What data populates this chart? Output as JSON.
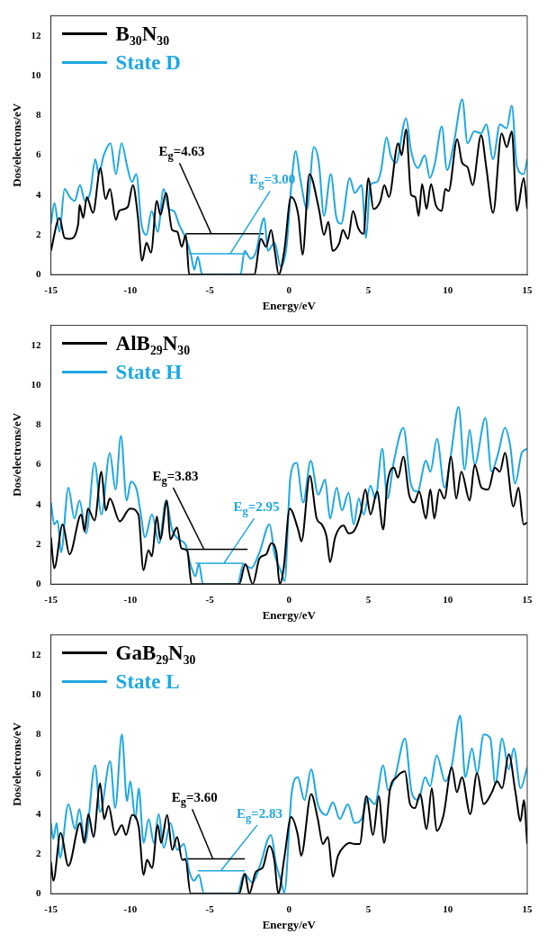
{
  "chart_data": [
    {
      "type": "line",
      "xlabel": "Energy/eV",
      "ylabel": "Dos/electrons/eV",
      "xlim": [
        -15,
        15
      ],
      "xticks": [
        -15,
        -10,
        -5,
        0,
        5,
        10,
        15
      ],
      "ylim": [
        0,
        13
      ],
      "yticks": [
        0,
        2,
        4,
        6,
        8,
        10,
        12
      ],
      "legend": "top left",
      "marker": "none",
      "series": [
        {
          "name": "B₃₀N₃₀",
          "color": "#000000",
          "x": [
            -15,
            -14.46,
            -14.14,
            -13.8,
            -13.28,
            -13.2,
            -12.96,
            -12.74,
            -12.35,
            -11.88,
            -11.56,
            -11.28,
            -10.91,
            -10.7,
            -10.16,
            -9.84,
            -9.52,
            -9.26,
            -8.98,
            -8.7,
            -8.33,
            -8.1,
            -7.75,
            -7.37,
            -7.04,
            -6.76,
            -6.5,
            -6.29,
            -2.2,
            -1.77,
            -1.45,
            -1.13,
            -0.9,
            -0.65,
            -0.3,
            0.12,
            0.59,
            0.85,
            1.28,
            1.88,
            2.2,
            2.48,
            2.74,
            3.17,
            3.39,
            3.71,
            4.03,
            4.35,
            4.68,
            5,
            5.32,
            5.75,
            6,
            6.29,
            6.87,
            7.09,
            7.37,
            7.69,
            7.95,
            8.16,
            8.38,
            8.66,
            8.94,
            9.24,
            9.62,
            9.84,
            10.05,
            10.59,
            10.91,
            11.24,
            11.56,
            12.1,
            12.42,
            12.85,
            13.39,
            13.71,
            14.03,
            14.35,
            14.78,
            15
          ],
          "values": [
            1.2,
            2.85,
            1.85,
            1.8,
            2.55,
            3.5,
            2.85,
            3.9,
            3.1,
            5.35,
            3.8,
            4.3,
            2.75,
            3.2,
            3.4,
            4.5,
            2.9,
            0.7,
            1.6,
            1.1,
            3.7,
            3,
            4.1,
            2.25,
            2.15,
            1.4,
            2,
            0,
            0,
            1.8,
            1.4,
            2.25,
            1.2,
            0,
            1.2,
            3.9,
            2.95,
            1,
            5.05,
            3.3,
            2,
            2.65,
            1.2,
            1.6,
            2.25,
            1.8,
            3.2,
            2.35,
            2.05,
            4.85,
            3.3,
            3.7,
            4.5,
            3.9,
            6.6,
            6,
            7.3,
            4,
            3.9,
            2.95,
            4.55,
            3.3,
            4.55,
            3.5,
            3.2,
            4.3,
            4.2,
            6.8,
            5.6,
            5.4,
            4.5,
            7,
            5.4,
            3.1,
            7.1,
            6.4,
            7.2,
            3.2,
            4.85,
            3.3
          ]
        },
        {
          "name": "State D",
          "color": "#1ea7e1",
          "x": [
            -15,
            -14.78,
            -14.46,
            -14.14,
            -13.82,
            -13.5,
            -13.17,
            -12.85,
            -12.53,
            -12.2,
            -11.99,
            -11.67,
            -11.24,
            -10.91,
            -10.55,
            -10.2,
            -9.9,
            -9.62,
            -9.3,
            -8.98,
            -8.66,
            -8.27,
            -7.9,
            -7.58,
            -7.26,
            -6.94,
            -6.5,
            -6.18,
            -5.97,
            -5.75,
            -5.47,
            -3.06,
            -2.8,
            -2.42,
            -2.1,
            -1.56,
            -1.34,
            -0.91,
            -0.53,
            -0.16,
            0.16,
            0.42,
            0.7,
            1.13,
            1.56,
            1.88,
            2.2,
            2.63,
            2.96,
            3.28,
            3.82,
            4.14,
            4.57,
            4.85,
            5.11,
            5.54,
            5.8,
            6.14,
            6.4,
            6.72,
            7.37,
            7.69,
            8.12,
            8.55,
            8.87,
            9.19,
            9.62,
            9.95,
            10.38,
            10.91,
            11.24,
            11.67,
            12.1,
            12.42,
            12.85,
            13.28,
            13.71,
            14.03,
            14.35,
            14.78,
            15
          ],
          "values": [
            2.55,
            3.6,
            2.15,
            4.3,
            3.9,
            3.7,
            4.5,
            3.7,
            4.1,
            5.8,
            5.05,
            6,
            6.6,
            5.05,
            6.6,
            5.45,
            4.65,
            5.05,
            2.55,
            2,
            3.2,
            2.15,
            4.3,
            3.3,
            3.2,
            2.55,
            1.8,
            1,
            0.25,
            0.9,
            0,
            0,
            1.2,
            0.8,
            1.1,
            2.85,
            1.2,
            1.6,
            0.4,
            1.4,
            4.65,
            6.2,
            4.85,
            3.3,
            6.4,
            5.6,
            2.95,
            5.05,
            2.95,
            2.55,
            4.85,
            4.1,
            4.5,
            1.85,
            4.5,
            4.65,
            5.25,
            6.9,
            6,
            5.6,
            7.85,
            6.2,
            5.35,
            6,
            4.85,
            5.6,
            7.45,
            5.25,
            6.6,
            8.8,
            6.6,
            7.2,
            7.1,
            7.55,
            5.8,
            7.55,
            7.35,
            8.5,
            5.45,
            5.05,
            5.8
          ]
        },
        {
          "color": "#000000",
          "x": [
            -6.5,
            -1.6
          ],
          "values": [
            2.05,
            2.05
          ]
        },
        {
          "color": "#000000",
          "x": [
            -4.9,
            -6.9
          ],
          "values": [
            2.05,
            5.6
          ]
        },
        {
          "color": "#1ea7e1",
          "x": [
            -6.3,
            -2.68
          ],
          "values": [
            1.05,
            1.05
          ]
        },
        {
          "color": "#1ea7e1",
          "x": [
            -3.7,
            -1.2
          ],
          "values": [
            1.05,
            4.2
          ]
        }
      ],
      "annotations": [
        {
          "text": "E$_{g}$=4.63",
          "x": -6.9,
          "y": 5.6
        },
        {
          "text": "E$_{g}$=3.00",
          "x": -1.2,
          "y": 4.2
        }
      ]
    },
    {
      "type": "line",
      "xlabel": "Energy/eV",
      "ylabel": "Dos/electrons/eV",
      "xlim": [
        -15,
        15
      ],
      "xticks": [
        -15,
        -10,
        -5,
        0,
        5,
        10,
        15
      ],
      "ylim": [
        0,
        13
      ],
      "yticks": [
        0,
        2,
        4,
        6,
        8,
        10,
        12
      ],
      "legend": "top left",
      "marker": "none",
      "series": [
        {
          "name": "AlB₂₉N₃₀",
          "color": "#000000",
          "x": [
            -15,
            -14.79,
            -14.26,
            -13.83,
            -13.09,
            -12.88,
            -12.67,
            -12.25,
            -11.82,
            -11.55,
            -11.29,
            -10.66,
            -10.02,
            -9.49,
            -9.17,
            -8.86,
            -8.64,
            -8.33,
            -8.11,
            -7.69,
            -7.48,
            -7.06,
            -6.78,
            -6.42,
            -6.14,
            -3.14,
            -2.75,
            -2.29,
            -1.86,
            -1.44,
            -1.12,
            -0.8,
            -0.59,
            -0.34,
            0.04,
            0.57,
            0.78,
            1.31,
            1.74,
            2.06,
            2.37,
            2.58,
            2.9,
            3.43,
            3.75,
            4.07,
            4.49,
            4.81,
            5.13,
            5.55,
            5.93,
            6.19,
            6.61,
            6.86,
            7.2,
            7.56,
            7.88,
            8.2,
            8.62,
            8.9,
            9.15,
            9.47,
            9.79,
            10.21,
            10.53,
            10.85,
            11.38,
            11.69,
            12.12,
            12.54,
            12.97,
            13.28,
            13.6,
            14.13,
            14.45,
            14.77,
            15
          ],
          "values": [
            2.35,
            0.8,
            3,
            1.5,
            3.5,
            2.65,
            3.8,
            3.2,
            5.65,
            3.7,
            4.3,
            3.15,
            3.8,
            3.5,
            0.7,
            1.7,
            1.4,
            3.4,
            2.25,
            4.2,
            2.25,
            2.85,
            1.8,
            1.7,
            0,
            0,
            1,
            0,
            1.3,
            1.5,
            2.05,
            1.6,
            0,
            0.8,
            3.8,
            2.75,
            2.15,
            5.45,
            3.3,
            3,
            2.35,
            1.1,
            2.35,
            2.95,
            2.55,
            2.65,
            3.5,
            4.75,
            3.5,
            4.65,
            2.75,
            5.05,
            5.85,
            5.35,
            6.4,
            4.5,
            4.1,
            4.65,
            3.3,
            4.75,
            3.3,
            4.75,
            4.3,
            6.4,
            4.3,
            5.65,
            4.2,
            6,
            4.85,
            4.75,
            5.85,
            5.65,
            6.6,
            3.9,
            4.85,
            3,
            3.1
          ]
        },
        {
          "name": "State H",
          "color": "#1ea7e1",
          "x": [
            -15,
            -14.79,
            -14.58,
            -14.36,
            -13.9,
            -13.52,
            -13.2,
            -12.78,
            -12.25,
            -11.82,
            -11.29,
            -10.93,
            -10.59,
            -10.23,
            -9.96,
            -9.6,
            -9.39,
            -9.07,
            -8.64,
            -8.18,
            -7.75,
            -7.37,
            -6.95,
            -6.53,
            -6.21,
            -5.89,
            -5.68,
            -5.42,
            -3.24,
            -2.88,
            -2.39,
            -1.86,
            -1.23,
            -0.91,
            -0.49,
            -0.28,
            0.08,
            0.47,
            0.89,
            1.36,
            1.84,
            2.27,
            2.58,
            3,
            3.33,
            3.75,
            4.07,
            4.39,
            4.7,
            5.13,
            5.44,
            5.87,
            6.19,
            6.61,
            7.2,
            7.67,
            8.09,
            8.62,
            8.9,
            9.32,
            9.79,
            10.21,
            10.68,
            11.06,
            11.38,
            11.69,
            12.37,
            12.75,
            13.18,
            13.6,
            13.92,
            14.24,
            14.66,
            15
          ],
          "values": [
            4.1,
            3,
            3.2,
            1.6,
            4.85,
            3.3,
            4.2,
            2.55,
            6.1,
            3.5,
            6.6,
            4.75,
            7.45,
            4.2,
            5.15,
            4.75,
            3.8,
            2.35,
            3.5,
            2.05,
            4.2,
            2.75,
            2.25,
            2,
            1,
            0.4,
            1.05,
            0,
            0,
            1,
            0.8,
            1.6,
            3,
            1.5,
            0.6,
            0.15,
            5.35,
            6.1,
            4.1,
            6.2,
            4.5,
            5.25,
            3.3,
            4.85,
            3.7,
            4.6,
            3,
            4.3,
            3.5,
            4.95,
            4.3,
            6.8,
            4.3,
            6.2,
            7.85,
            5.05,
            4.65,
            6.2,
            5.65,
            7.3,
            4.85,
            6.6,
            8.9,
            5.75,
            7.75,
            6,
            8.35,
            5.65,
            6.6,
            7.85,
            7,
            5.05,
            6.6,
            6.8
          ]
        },
        {
          "color": "#000000",
          "x": [
            -6.42,
            -2.61
          ],
          "values": [
            1.75,
            1.75
          ]
        },
        {
          "color": "#000000",
          "x": [
            -5.36,
            -7.3
          ],
          "values": [
            1.75,
            4.85
          ]
        },
        {
          "color": "#1ea7e1",
          "x": [
            -5.89,
            -2.88
          ],
          "values": [
            1.05,
            1.05
          ]
        },
        {
          "color": "#1ea7e1",
          "x": [
            -4.1,
            -2.2
          ],
          "values": [
            1.05,
            3.3
          ]
        }
      ],
      "annotations": [
        {
          "text": "E$_{g}$=3.83",
          "x": -7.3,
          "y": 4.85
        },
        {
          "text": "E$_{g}$=2.95",
          "x": -2.2,
          "y": 3.3
        }
      ]
    },
    {
      "type": "line",
      "xlabel": "Energy/eV",
      "ylabel": "Dos/electrons/eV",
      "xlim": [
        -15,
        15
      ],
      "xticks": [
        -15,
        -10,
        -5,
        0,
        5,
        10,
        15
      ],
      "ylim": [
        0,
        13
      ],
      "yticks": [
        0,
        2,
        4,
        6,
        8,
        10,
        12
      ],
      "legend": "top left",
      "marker": "none",
      "series": [
        {
          "name": "GaB₂₉N₃₀",
          "color": "#000000",
          "x": [
            -15,
            -14.85,
            -14.39,
            -13.9,
            -13.16,
            -12.91,
            -12.64,
            -12.32,
            -11.9,
            -11.65,
            -11.37,
            -10.95,
            -10.53,
            -10.27,
            -9.89,
            -9.47,
            -9.16,
            -8.95,
            -8.63,
            -8.27,
            -8.06,
            -7.68,
            -7.36,
            -7.05,
            -6.73,
            -6.52,
            -6.2,
            -3.14,
            -2.78,
            -2.51,
            -2.09,
            -1.67,
            -1.24,
            -0.93,
            -0.68,
            -0.3,
            0.13,
            0.55,
            0.76,
            1.39,
            1.81,
            2.13,
            2.45,
            2.76,
            3.08,
            3.5,
            3.82,
            4.13,
            4.45,
            4.87,
            5.29,
            5.65,
            5.99,
            6.35,
            6.77,
            7.3,
            7.62,
            7.93,
            8.25,
            8.67,
            8.99,
            9.3,
            9.73,
            10.25,
            10.57,
            10.89,
            11.41,
            11.84,
            12.26,
            12.78,
            13.1,
            13.42,
            13.84,
            14.26,
            14.58,
            14.79,
            15
          ],
          "values": [
            1.6,
            0.65,
            3.05,
            1.4,
            3.55,
            2.55,
            4,
            2.85,
            5.55,
            3.75,
            4.4,
            2.95,
            3.45,
            2.95,
            3.95,
            3.35,
            0.95,
            1.7,
            1.3,
            3.45,
            2.55,
            3.95,
            2.2,
            2.85,
            1.7,
            1.7,
            0,
            0,
            1,
            0,
            1.1,
            1.3,
            2.4,
            1.7,
            0,
            1.8,
            3.85,
            2.95,
            1.9,
            5,
            3.75,
            2.5,
            2.85,
            0.85,
            1.9,
            2.4,
            2.55,
            2.5,
            2.5,
            4.9,
            2.95,
            4.9,
            2.55,
            5.2,
            5.85,
            6.15,
            4.5,
            4.3,
            5,
            3.25,
            5.3,
            3.15,
            3.95,
            6.35,
            5.1,
            5.85,
            4,
            6.05,
            4.5,
            5.1,
            5.65,
            5.3,
            7,
            5.1,
            3.65,
            4.7,
            2.5
          ]
        },
        {
          "name": "State L",
          "color": "#1ea7e1",
          "x": [
            -15,
            -14.85,
            -14.64,
            -14.43,
            -13.9,
            -13.48,
            -13.21,
            -12.85,
            -12.22,
            -11.9,
            -11.27,
            -10.95,
            -10.53,
            -10.21,
            -10,
            -9.68,
            -9.47,
            -9.16,
            -8.84,
            -8.52,
            -8.21,
            -7.89,
            -7.47,
            -7.05,
            -6.62,
            -6.31,
            -5.99,
            -5.68,
            -5.36,
            -3.25,
            -2.83,
            -2.3,
            -1.88,
            -1.14,
            -0.82,
            -0.51,
            -0.3,
            0.17,
            0.55,
            0.97,
            1.39,
            1.81,
            2.34,
            2.76,
            3.19,
            3.71,
            4.13,
            4.56,
            4.98,
            5.4,
            5.93,
            6.24,
            6.67,
            7.3,
            7.72,
            8.14,
            8.57,
            8.88,
            9.3,
            9.83,
            10.25,
            10.78,
            11.1,
            11.52,
            11.84,
            12.26,
            12.68,
            12.99,
            13.42,
            13.84,
            14.16,
            14.58,
            15
          ],
          "values": [
            3.55,
            2.75,
            3.55,
            1.8,
            4.5,
            3.25,
            4.25,
            2.55,
            6.45,
            4.1,
            6.65,
            4.3,
            8,
            4.65,
            5.65,
            3.75,
            5.3,
            2.55,
            3.75,
            2.55,
            4,
            2.3,
            3.55,
            2.2,
            2.5,
            1.2,
            0.65,
            0.95,
            0,
            0,
            1,
            0.55,
            1.3,
            2.95,
            1.5,
            0.65,
            0.05,
            5.1,
            5.85,
            4.7,
            6.25,
            4.5,
            3.95,
            4.6,
            3.75,
            4.5,
            3.55,
            3.75,
            4.8,
            4.5,
            6.45,
            5.2,
            5.85,
            7.8,
            5.1,
            4.7,
            5.85,
            5.4,
            6.95,
            5.65,
            6.45,
            8.95,
            5.85,
            7.3,
            6.05,
            8,
            7.8,
            5.5,
            7.8,
            6.25,
            7.3,
            5.3,
            6.35
          ]
        },
        {
          "color": "#000000",
          "x": [
            -6.62,
            -2.78
          ],
          "values": [
            1.75,
            1.75
          ]
        },
        {
          "color": "#000000",
          "x": [
            -4.8,
            -6.1
          ],
          "values": [
            1.75,
            4.25
          ]
        },
        {
          "color": "#1ea7e1",
          "x": [
            -5.74,
            -2.78
          ],
          "values": [
            1.15,
            1.15
          ]
        },
        {
          "color": "#1ea7e1",
          "x": [
            -4.3,
            -2.0
          ],
          "values": [
            1.15,
            3.45
          ]
        }
      ],
      "annotations": [
        {
          "text": "E$_{g}$=3.60",
          "x": -6.1,
          "y": 4.25
        },
        {
          "text": "E$_{g}$=2.83",
          "x": -2.0,
          "y": 3.45
        }
      ]
    }
  ]
}
